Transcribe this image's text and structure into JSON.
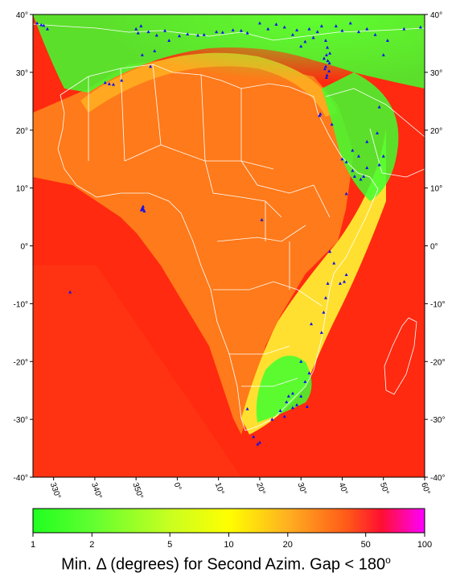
{
  "map": {
    "lon_range": [
      -35,
      60
    ],
    "lat_range": [
      -40,
      40
    ],
    "lon_ticks": [
      {
        "value": -30,
        "label": "330°"
      },
      {
        "value": -20,
        "label": "340°"
      },
      {
        "value": -10,
        "label": "350°"
      },
      {
        "value": 0,
        "label": "0°"
      },
      {
        "value": 10,
        "label": "10°"
      },
      {
        "value": 20,
        "label": "20°"
      },
      {
        "value": 30,
        "label": "30°"
      },
      {
        "value": 40,
        "label": "40°"
      },
      {
        "value": 50,
        "label": "50°"
      },
      {
        "value": 60,
        "label": "60°"
      }
    ],
    "lat_ticks": [
      {
        "value": 40,
        "label": "40°"
      },
      {
        "value": 30,
        "label": "30°"
      },
      {
        "value": 20,
        "label": "20°"
      },
      {
        "value": 10,
        "label": "10°"
      },
      {
        "value": 0,
        "label": "0°"
      },
      {
        "value": -10,
        "label": "-10°"
      },
      {
        "value": -20,
        "label": "-20°"
      },
      {
        "value": -30,
        "label": "-30°"
      },
      {
        "value": -40,
        "label": "-40°"
      }
    ],
    "colors": {
      "background": "#ff2a10",
      "ocean_south": "#ff3312",
      "continent": "#ff7a1a",
      "arc": "#ffa820",
      "band": "#ffe030",
      "green": "#40ff30",
      "station": "#1010ee",
      "border": "#ffffff"
    },
    "stations": [
      [
        -34,
        38.5
      ],
      [
        -33,
        38.2
      ],
      [
        -32.4,
        38.1
      ],
      [
        -31.5,
        37.5
      ],
      [
        -10,
        37.5
      ],
      [
        -9.5,
        36.8
      ],
      [
        -8.8,
        38
      ],
      [
        -7,
        37
      ],
      [
        -5,
        36.4
      ],
      [
        -3,
        37.2
      ],
      [
        -2,
        35.5
      ],
      [
        0.5,
        36.3
      ],
      [
        2.5,
        36.6
      ],
      [
        5,
        36.4
      ],
      [
        6.5,
        36.5
      ],
      [
        9.5,
        37
      ],
      [
        11,
        36.9
      ],
      [
        13.5,
        37.3
      ],
      [
        -8.5,
        33
      ],
      [
        -6.5,
        31
      ],
      [
        -5.5,
        33.7
      ],
      [
        -16.5,
        28
      ],
      [
        -17.5,
        28.2
      ],
      [
        -15.5,
        27.9
      ],
      [
        -13.5,
        28.6
      ],
      [
        15.5,
        37.2
      ],
      [
        17,
        36.8
      ],
      [
        20,
        38.5
      ],
      [
        22,
        37.5
      ],
      [
        24,
        38.3
      ],
      [
        26,
        37.8
      ],
      [
        28,
        36.5
      ],
      [
        29,
        37.3
      ],
      [
        32,
        37.5
      ],
      [
        34,
        37
      ],
      [
        35,
        38
      ],
      [
        33,
        36
      ],
      [
        31,
        35.3
      ],
      [
        30,
        34.5
      ],
      [
        36,
        35.5
      ],
      [
        36.4,
        34.3
      ],
      [
        36.2,
        33
      ],
      [
        36.5,
        32
      ],
      [
        36,
        31
      ],
      [
        36.8,
        30.2
      ],
      [
        36.3,
        29.5
      ],
      [
        37,
        33.3
      ],
      [
        35.6,
        32.4
      ],
      [
        36.9,
        31.6
      ],
      [
        35.8,
        30.6
      ],
      [
        36.2,
        29.1
      ],
      [
        38.5,
        38
      ],
      [
        40,
        37.2
      ],
      [
        42,
        38.5
      ],
      [
        44,
        37
      ],
      [
        46,
        37.5
      ],
      [
        48,
        36.5
      ],
      [
        51,
        35.5
      ],
      [
        55,
        37.5
      ],
      [
        59,
        37.8
      ],
      [
        50,
        33
      ],
      [
        34.5,
        22.5
      ],
      [
        34.7,
        22.8
      ],
      [
        37.5,
        21
      ],
      [
        40,
        15
      ],
      [
        41,
        14.5
      ],
      [
        42.5,
        13
      ],
      [
        43,
        12
      ],
      [
        44.5,
        11.5
      ],
      [
        45.2,
        12
      ],
      [
        46,
        13.5
      ],
      [
        44,
        15.5
      ],
      [
        49,
        14
      ],
      [
        50,
        15.5
      ],
      [
        42.5,
        16.5
      ],
      [
        46,
        18
      ],
      [
        48.5,
        19.5
      ],
      [
        49,
        24
      ],
      [
        41,
        9
      ],
      [
        -8.5,
        6.5
      ],
      [
        -8.2,
        6.3
      ],
      [
        -8.7,
        6.2
      ],
      [
        -8.3,
        6.8
      ],
      [
        -8,
        6
      ],
      [
        -26,
        -8
      ],
      [
        20.5,
        4.5
      ],
      [
        37,
        -1
      ],
      [
        38,
        -3
      ],
      [
        36.5,
        -6.5
      ],
      [
        39.5,
        -6.5
      ],
      [
        40.5,
        -6.2
      ],
      [
        41,
        -5
      ],
      [
        36,
        -9
      ],
      [
        35.5,
        -11.5
      ],
      [
        35,
        -15
      ],
      [
        32.5,
        -13.5
      ],
      [
        30,
        -20
      ],
      [
        32,
        -22
      ],
      [
        31,
        -23.5
      ],
      [
        28,
        -25.5
      ],
      [
        27,
        -26
      ],
      [
        26.5,
        -27
      ],
      [
        29,
        -27.5
      ],
      [
        30,
        -26
      ],
      [
        31.5,
        -27.8
      ],
      [
        25,
        -28.5
      ],
      [
        28,
        -28
      ],
      [
        26,
        -29.5
      ],
      [
        23,
        -30
      ],
      [
        17,
        -28.2
      ],
      [
        18.5,
        -33
      ],
      [
        19.5,
        -34.3
      ],
      [
        20,
        -34
      ]
    ]
  },
  "colorbar": {
    "ticks": [
      {
        "value": 1,
        "label": "1"
      },
      {
        "value": 2,
        "label": "2"
      },
      {
        "value": 5,
        "label": "5"
      },
      {
        "value": 10,
        "label": "10"
      },
      {
        "value": 20,
        "label": "20"
      },
      {
        "value": 50,
        "label": "50"
      },
      {
        "value": 100,
        "label": "100"
      }
    ],
    "stops": [
      {
        "value": 1,
        "color": "#20ff20"
      },
      {
        "value": 2,
        "color": "#60ff30"
      },
      {
        "value": 5,
        "color": "#c8ff20"
      },
      {
        "value": 10,
        "color": "#ffff00"
      },
      {
        "value": 20,
        "color": "#ffb020"
      },
      {
        "value": 40,
        "color": "#ff5a18"
      },
      {
        "value": 60,
        "color": "#ff1030"
      },
      {
        "value": 100,
        "color": "#ff00ff"
      }
    ]
  },
  "caption": {
    "text": "Min. Δ (degrees) for Second Azim. Gap < 180",
    "sup": "o"
  }
}
